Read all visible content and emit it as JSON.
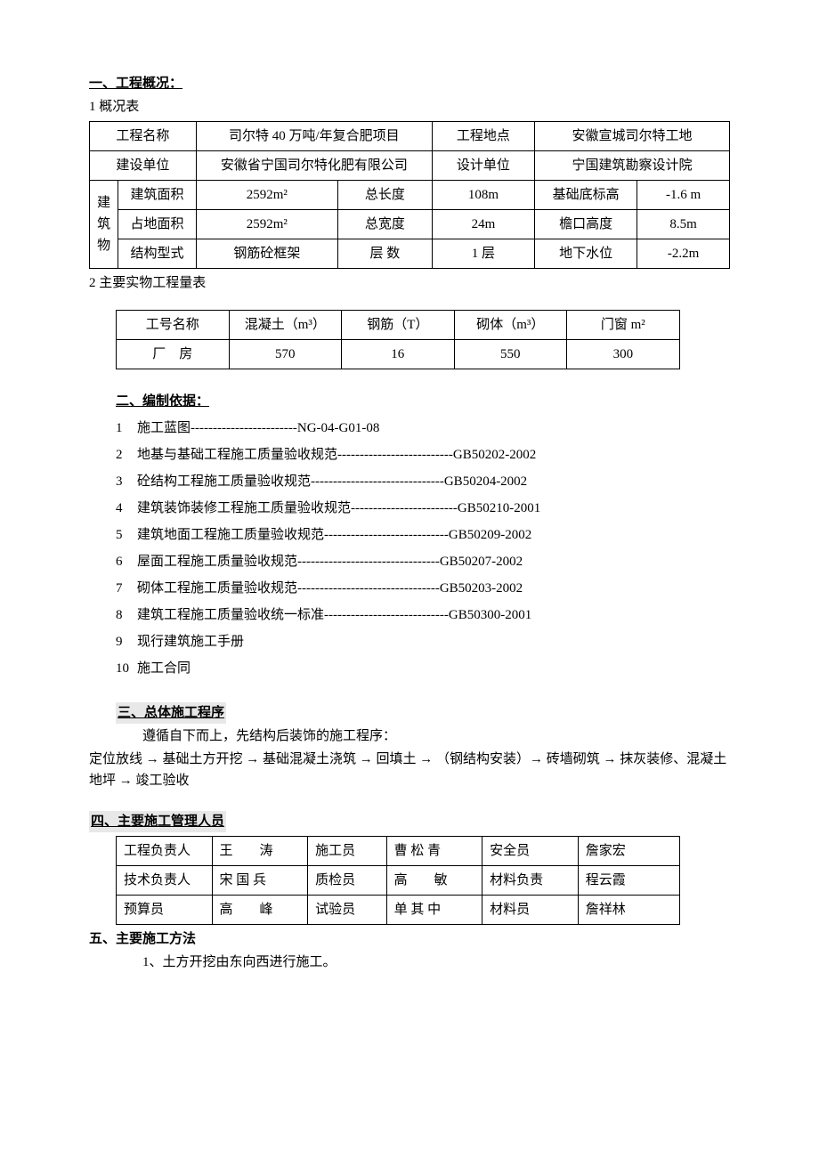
{
  "s1": {
    "title": "一、工程概况：",
    "sub1": "1 概况表",
    "table": {
      "r1": {
        "c1": "工程名称",
        "c2": "司尔特 40 万吨/年复合肥项目",
        "c3": "工程地点",
        "c4": "安徽宣城司尔特工地"
      },
      "r2": {
        "c1": "建设单位",
        "c2": "安徽省宁国司尔特化肥有限公司",
        "c3": "设计单位",
        "c4": "宁国建筑勘察设计院"
      },
      "rowhead": "建筑物",
      "r3": {
        "c1": "建筑面积",
        "c2": "2592m²",
        "c3": "总长度",
        "c4": "108m",
        "c5": "基础底标高",
        "c6": "-1.6 m"
      },
      "r4": {
        "c1": "占地面积",
        "c2": "2592m²",
        "c3": "总宽度",
        "c4": "24m",
        "c5": "檐口高度",
        "c6": "8.5m"
      },
      "r5": {
        "c1": "结构型式",
        "c2": "钢筋砼框架",
        "c3": "层 数",
        "c4": "1 层",
        "c5": "地下水位",
        "c6": "-2.2m"
      }
    },
    "sub2": "2 主要实物工程量表",
    "table2": {
      "h1": "工号名称",
      "h2": "混凝土（m³）",
      "h3": "钢筋（T）",
      "h4": "砌体（m³）",
      "h5": "门窗 m²",
      "r1c1": "厂　房",
      "r1c2": "570",
      "r1c3": "16",
      "r1c4": "550",
      "r1c5": "300"
    }
  },
  "s2": {
    "title": "二、编制依据：",
    "items": [
      "施工蓝图------------------------NG-04-G01-08",
      "地基与基础工程施工质量验收规范--------------------------GB50202-2002",
      "砼结构工程施工质量验收规范------------------------------GB50204-2002",
      "建筑装饰装修工程施工质量验收规范------------------------GB50210-2001",
      "建筑地面工程施工质量验收规范----------------------------GB50209-2002",
      "屋面工程施工质量验收规范--------------------------------GB50207-2002",
      "砌体工程施工质量验收规范--------------------------------GB50203-2002",
      "建筑工程施工质量验收统一标准----------------------------GB50300-2001",
      "现行建筑施工手册",
      "施工合同"
    ]
  },
  "s3": {
    "title": "三、总体施工程序",
    "line1": "遵循自下而上，先结构后装饰的施工程序：",
    "line2": "定位放线 → 基础土方开挖 → 基础混凝土浇筑 → 回填土 → （钢结构安装）→ 砖墙砌筑 → 抹灰装修、混凝土地坪 → 竣工验收"
  },
  "s4": {
    "title": "四、主要施工管理人员",
    "table": {
      "r1": {
        "c1": "工程负责人",
        "c2": "王　　涛",
        "c3": "施工员",
        "c4": "曹 松 青",
        "c5": "安全员",
        "c6": "詹家宏"
      },
      "r2": {
        "c1": "技术负责人",
        "c2": "宋 国 兵",
        "c3": "质检员",
        "c4": "高　　敏",
        "c5": "材料负责",
        "c6": "程云霞"
      },
      "r3": {
        "c1": "预算员",
        "c2": "高　　峰",
        "c3": "试验员",
        "c4": "单 其 中",
        "c5": "材料员",
        "c6": "詹祥林"
      }
    }
  },
  "s5": {
    "title": "五、主要施工方法",
    "line1": "1、土方开挖由东向西进行施工。"
  }
}
